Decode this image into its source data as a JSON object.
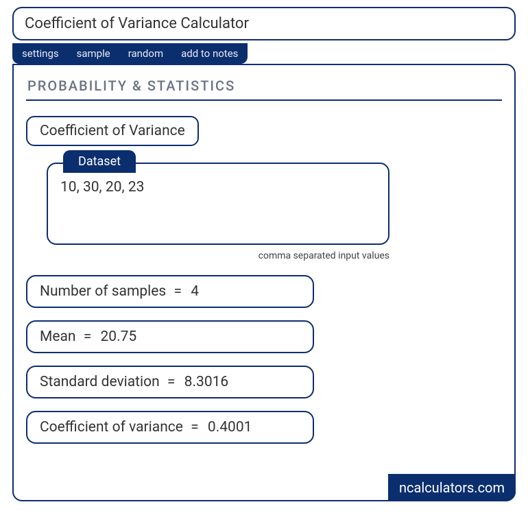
{
  "colors": {
    "primary": "#0b2e6e",
    "text": "#333333",
    "muted": "#6b7280",
    "background": "#ffffff",
    "tab_text": "#e6e9f2"
  },
  "title": "Coefficient of Variance Calculator",
  "tabs": {
    "settings": "settings",
    "sample": "sample",
    "random": "random",
    "add_to_notes": "add to notes"
  },
  "section_header": "PROBABILITY & STATISTICS",
  "subtitle": "Coefficient of Variance",
  "dataset": {
    "label": "Dataset",
    "value": "10, 30, 20, 23",
    "helper": "comma separated input values"
  },
  "results": {
    "samples": {
      "label": "Number of samples",
      "value": "4"
    },
    "mean": {
      "label": "Mean",
      "value": "20.75"
    },
    "stddev": {
      "label": "Standard deviation",
      "value": "8.3016"
    },
    "cov": {
      "label": "Coefficient of variance",
      "value": "0.4001"
    }
  },
  "equals": "=",
  "footer": "ncalculators.com"
}
